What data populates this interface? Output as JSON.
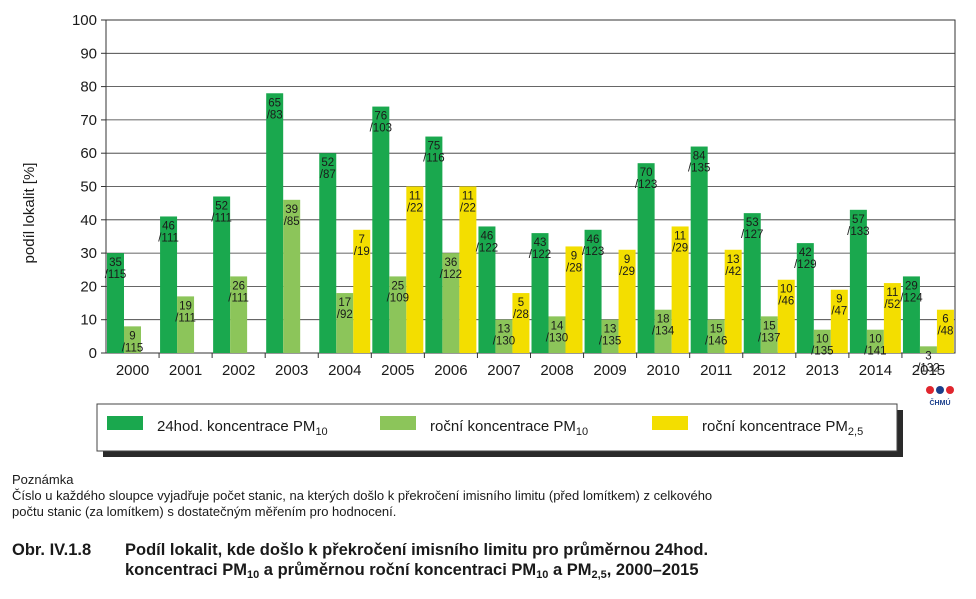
{
  "chart_data": {
    "type": "bar",
    "ylabel": "podíl lokalit [%]",
    "ylim": [
      0,
      100
    ],
    "yticks": [
      0,
      10,
      20,
      30,
      40,
      50,
      60,
      70,
      80,
      90,
      100
    ],
    "grid": true,
    "legend_position": "bottom",
    "categories": [
      "2000",
      "2001",
      "2002",
      "2003",
      "2004",
      "2005",
      "2006",
      "2007",
      "2008",
      "2009",
      "2010",
      "2011",
      "2012",
      "2013",
      "2014",
      "2015"
    ],
    "series": [
      {
        "name": "24hod. koncentrace PM10",
        "legend_main": "24hod. koncentrace PM",
        "legend_sub": "10",
        "color": "#1aa84e",
        "values": [
          30,
          41,
          47,
          78,
          60,
          74,
          65,
          38,
          36,
          37,
          57,
          62,
          42,
          33,
          43,
          23
        ],
        "labels": [
          "35\n/115",
          "46\n/111",
          "52\n/111",
          "65\n/83",
          "52\n/87",
          "76\n/103",
          "75\n/116",
          "46\n/122",
          "43\n/122",
          "46\n/123",
          "70\n/123",
          "84\n/135",
          "53\n/127",
          "42\n/129",
          "57\n/133",
          "29\n/124"
        ]
      },
      {
        "name": "roční koncentrace PM10",
        "legend_main": "roční koncentrace PM",
        "legend_sub": "10",
        "color": "#8cc55a",
        "values": [
          8,
          17,
          23,
          46,
          18,
          23,
          30,
          10,
          11,
          10,
          13,
          10,
          11,
          7,
          7,
          2
        ],
        "labels": [
          "9\n/115",
          "19\n/111",
          "26\n/111",
          "39\n/85",
          "17\n/92",
          "25\n/109",
          "36\n/122",
          "13\n/130",
          "14\n/130",
          "13\n/135",
          "18\n/134",
          "15\n/146",
          "15\n/137",
          "10\n/135",
          "10\n/141",
          "3\n/132"
        ]
      },
      {
        "name": "roční koncentrace PM2,5",
        "legend_main": "roční koncentrace PM",
        "legend_sub": "2,5",
        "color": "#f3de00",
        "values": [
          null,
          null,
          null,
          null,
          37,
          50,
          50,
          18,
          32,
          31,
          38,
          31,
          22,
          19,
          21,
          13
        ],
        "labels": [
          null,
          null,
          null,
          null,
          "7\n/19",
          "11\n/22",
          "11\n/22",
          "5\n/28",
          "9\n/28",
          "9\n/29",
          "11\n/29",
          "13\n/42",
          "10\n/46",
          "9\n/47",
          "11\n/52",
          "6\n/48"
        ]
      }
    ]
  },
  "note": {
    "title": "Poznámka",
    "line1": "Číslo u každého sloupce vyjadřuje počet stanic, na kterých došlo k překročení imisního limitu (před lomítkem) z celkového",
    "line2": "počtu stanic (za lomítkem) s dostatečným měřením pro hodnocení."
  },
  "caption": {
    "prefix": "Obr. IV.1.8",
    "l1": "Podíl lokalit, kde došlo k překročení imisního limitu pro průměrnou 24hod.",
    "l2a": "koncentraci PM",
    "l2a_sub": "10",
    "l2b": " a průměrnou roční koncentraci PM",
    "l2b_sub": "10",
    "l2c": " a PM",
    "l2c_sub": "2,5",
    "l2d": ", 2000–2015"
  },
  "logo": {
    "text": "ČHMÚ",
    "dot_colors": [
      "#e0262e",
      "#1b3f8b",
      "#e0262e"
    ]
  }
}
